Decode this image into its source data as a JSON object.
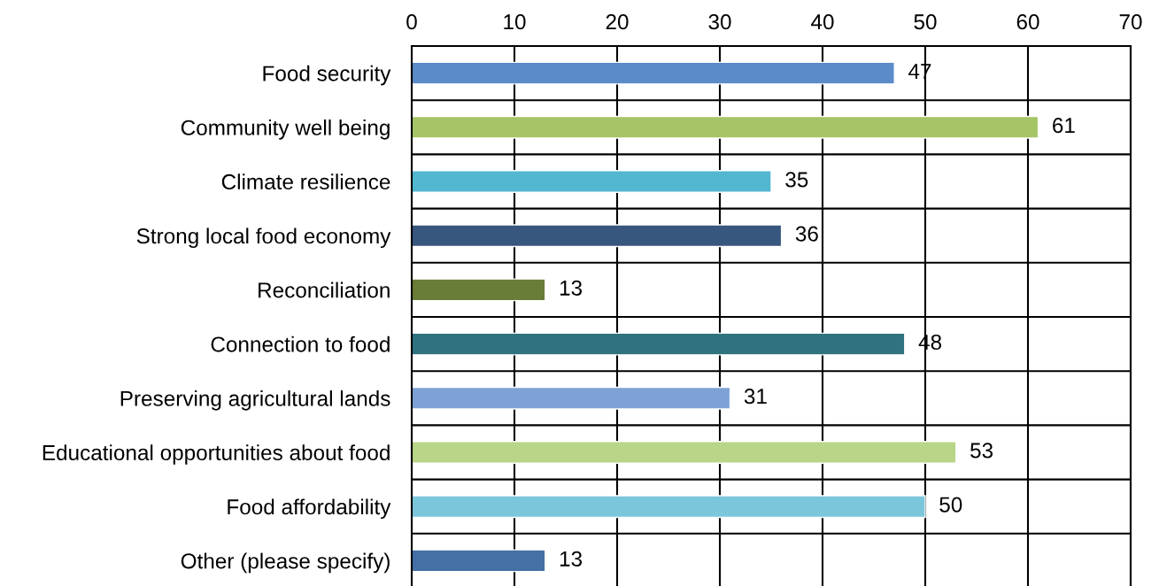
{
  "chart_data": {
    "type": "bar",
    "orientation": "horizontal",
    "categories": [
      "Food security",
      "Community well being",
      "Climate resilience",
      "Strong local food economy",
      "Reconciliation",
      "Connection to food",
      "Preserving agricultural lands",
      "Educational opportunities about food",
      "Food affordability",
      "Other (please specify)"
    ],
    "values": [
      47,
      61,
      35,
      36,
      13,
      48,
      31,
      53,
      50,
      13
    ],
    "colors": [
      "#5b8bc9",
      "#a5c566",
      "#53b7d1",
      "#37577f",
      "#6a7d38",
      "#30727f",
      "#7da3d6",
      "#b8d588",
      "#7bc6da",
      "#4470a5"
    ],
    "xlim": [
      0,
      70
    ],
    "xticks": [
      0,
      10,
      20,
      30,
      40,
      50,
      60,
      70
    ],
    "grid": true,
    "data_labels": true
  }
}
